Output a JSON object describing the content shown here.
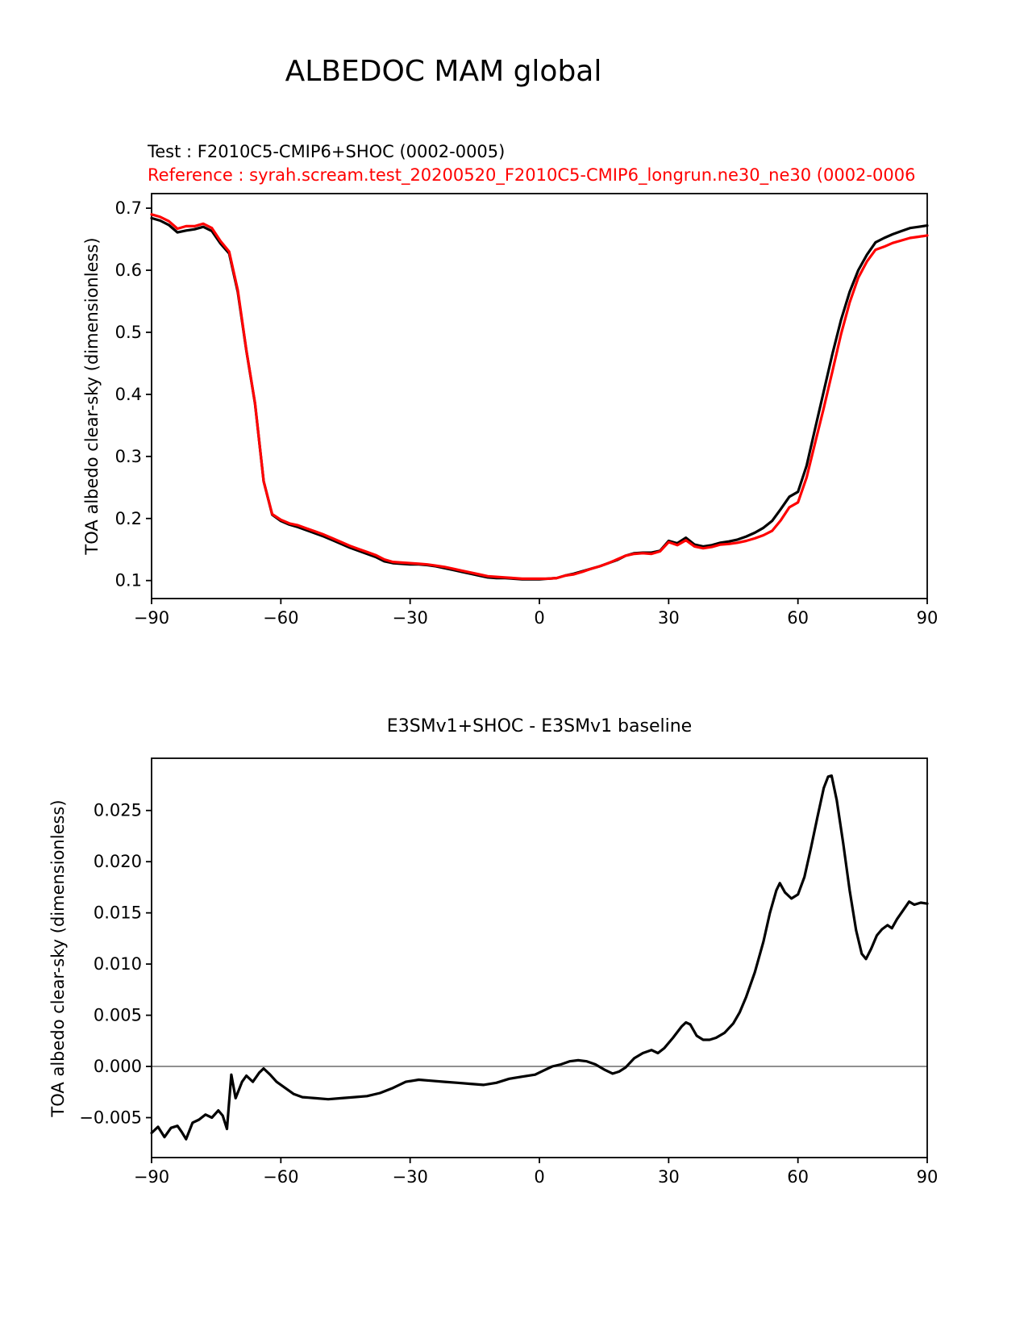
{
  "figure": {
    "title": "ALBEDOC MAM global",
    "legend": {
      "test": "Test : F2010C5-CMIP6+SHOC (0002-0005)",
      "reference": "Reference : syrah.scream.test_20200520_F2010C5-CMIP6_longrun.ne30_ne30 (0002-0006"
    }
  },
  "colors": {
    "test_line": "#000000",
    "reference_line": "#ff0000",
    "zero_line": "#909090",
    "axis": "#000000"
  },
  "chart_data": [
    {
      "type": "line",
      "title": "ALBEDOC MAM global",
      "xlabel": "",
      "ylabel": "TOA albedo clear-sky (dimensionless)",
      "xlim": [
        -90,
        90
      ],
      "ylim": [
        0.071,
        0.7235
      ],
      "grid": false,
      "legend_position": "above-top-left",
      "xticks": [
        -90,
        -60,
        -30,
        0,
        30,
        60,
        90
      ],
      "xtick_labels": [
        "−90",
        "−60",
        "−30",
        "0",
        "30",
        "60",
        "90"
      ],
      "yticks": [
        0.1,
        0.2,
        0.3,
        0.4,
        0.5,
        0.6,
        0.7
      ],
      "ytick_labels": [
        "0.1",
        "0.2",
        "0.3",
        "0.4",
        "0.5",
        "0.6",
        "0.7"
      ],
      "x": [
        -90,
        -88,
        -86,
        -84,
        -82,
        -80,
        -78,
        -76,
        -74,
        -72,
        -70,
        -68,
        -66,
        -64,
        -62,
        -60,
        -58,
        -56,
        -54,
        -52,
        -50,
        -48,
        -46,
        -44,
        -42,
        -40,
        -38,
        -36,
        -34,
        -32,
        -30,
        -28,
        -26,
        -24,
        -22,
        -20,
        -18,
        -16,
        -14,
        -12,
        -10,
        -8,
        -6,
        -4,
        -2,
        0,
        2,
        4,
        6,
        8,
        10,
        12,
        14,
        16,
        18,
        20,
        22,
        24,
        26,
        28,
        30,
        32,
        34,
        36,
        38,
        40,
        42,
        44,
        46,
        48,
        50,
        52,
        54,
        56,
        58,
        60,
        62,
        64,
        66,
        68,
        70,
        72,
        74,
        76,
        78,
        80,
        82,
        84,
        86,
        88,
        90
      ],
      "series": [
        {
          "name": "Test : F2010C5-CMIP6+SHOC (0002-0005)",
          "color": "#000000",
          "values": [
            0.684,
            0.68,
            0.673,
            0.661,
            0.664,
            0.666,
            0.67,
            0.663,
            0.643,
            0.627,
            0.565,
            0.47,
            0.385,
            0.26,
            0.206,
            0.196,
            0.19,
            0.186,
            0.181,
            0.176,
            0.171,
            0.165,
            0.159,
            0.153,
            0.148,
            0.143,
            0.138,
            0.131,
            0.128,
            0.127,
            0.126,
            0.126,
            0.125,
            0.123,
            0.12,
            0.117,
            0.114,
            0.111,
            0.108,
            0.105,
            0.104,
            0.104,
            0.103,
            0.102,
            0.102,
            0.102,
            0.103,
            0.104,
            0.108,
            0.111,
            0.115,
            0.119,
            0.123,
            0.128,
            0.133,
            0.14,
            0.144,
            0.145,
            0.145,
            0.148,
            0.164,
            0.16,
            0.169,
            0.158,
            0.155,
            0.157,
            0.161,
            0.163,
            0.166,
            0.171,
            0.177,
            0.185,
            0.196,
            0.215,
            0.235,
            0.243,
            0.285,
            0.345,
            0.405,
            0.465,
            0.52,
            0.565,
            0.6,
            0.625,
            0.645,
            0.652,
            0.658,
            0.663,
            0.668,
            0.67,
            0.672
          ]
        },
        {
          "name": "Reference : syrah.scream.test_20200520_F2010C5-CMIP6_longrun.ne30_ne30 (0002-0006",
          "color": "#ff0000",
          "values": [
            0.69,
            0.686,
            0.679,
            0.667,
            0.671,
            0.671,
            0.675,
            0.668,
            0.647,
            0.63,
            0.568,
            0.471,
            0.386,
            0.26,
            0.207,
            0.198,
            0.192,
            0.189,
            0.184,
            0.179,
            0.174,
            0.168,
            0.162,
            0.156,
            0.151,
            0.146,
            0.141,
            0.134,
            0.13,
            0.129,
            0.128,
            0.127,
            0.126,
            0.124,
            0.122,
            0.119,
            0.116,
            0.113,
            0.11,
            0.107,
            0.106,
            0.105,
            0.104,
            0.103,
            0.103,
            0.103,
            0.103,
            0.104,
            0.108,
            0.11,
            0.114,
            0.119,
            0.123,
            0.128,
            0.134,
            0.14,
            0.143,
            0.144,
            0.143,
            0.147,
            0.162,
            0.157,
            0.165,
            0.155,
            0.152,
            0.154,
            0.158,
            0.159,
            0.161,
            0.164,
            0.168,
            0.173,
            0.18,
            0.197,
            0.218,
            0.226,
            0.266,
            0.322,
            0.378,
            0.437,
            0.497,
            0.548,
            0.588,
            0.614,
            0.633,
            0.638,
            0.644,
            0.648,
            0.652,
            0.654,
            0.656
          ]
        }
      ]
    },
    {
      "type": "line",
      "title": "E3SMv1+SHOC - E3SMv1 baseline",
      "xlabel": "",
      "ylabel": "TOA albedo clear-sky (dimensionless)",
      "xlim": [
        -90,
        90
      ],
      "ylim": [
        -0.0089,
        0.0301
      ],
      "grid": false,
      "reference_line_y": 0,
      "xticks": [
        -90,
        -60,
        -30,
        0,
        30,
        60,
        90
      ],
      "xtick_labels": [
        "−90",
        "−60",
        "−30",
        "0",
        "30",
        "60",
        "90"
      ],
      "yticks": [
        -0.005,
        0.0,
        0.005,
        0.01,
        0.015,
        0.02,
        0.025
      ],
      "ytick_labels": [
        "−0.005",
        "0.000",
        "0.005",
        "0.010",
        "0.015",
        "0.020",
        "0.025"
      ],
      "x": [
        -90,
        -88.5,
        -87,
        -85.5,
        -84,
        -83,
        -82,
        -80.5,
        -79,
        -77.5,
        -76,
        -74.5,
        -73.5,
        -72.5,
        -71.5,
        -70.5,
        -69,
        -68,
        -66.5,
        -65,
        -64,
        -62.5,
        -61,
        -59,
        -57,
        -55,
        -52,
        -49,
        -46,
        -43,
        -40,
        -37,
        -34,
        -31,
        -28,
        -25,
        -22,
        -19,
        -16,
        -13,
        -10,
        -7,
        -4,
        -1,
        1,
        3,
        5,
        7,
        9,
        11,
        13,
        15,
        17,
        18.5,
        20,
        22,
        24,
        26,
        27.5,
        29,
        31,
        33,
        34,
        35,
        36.5,
        38,
        39.5,
        41,
        43,
        45,
        46.5,
        48,
        50,
        52,
        53.5,
        55,
        55.8,
        57,
        58.5,
        60,
        61.5,
        63,
        64.5,
        66,
        67,
        67.8,
        69,
        70.5,
        72,
        73.5,
        74.8,
        75.8,
        77,
        78.3,
        79.5,
        80.8,
        81.8,
        83,
        84.5,
        85.8,
        87,
        88.5,
        90
      ],
      "series": [
        {
          "name": "E3SMv1+SHOC - E3SMv1 baseline",
          "color": "#000000",
          "values": [
            -0.0065,
            -0.0059,
            -0.0069,
            -0.006,
            -0.0058,
            -0.0064,
            -0.0071,
            -0.0055,
            -0.0052,
            -0.0047,
            -0.005,
            -0.0043,
            -0.0048,
            -0.0061,
            -0.0008,
            -0.0031,
            -0.0015,
            -0.0009,
            -0.0015,
            -0.0006,
            -0.0002,
            -0.0008,
            -0.0015,
            -0.0021,
            -0.0027,
            -0.003,
            -0.0031,
            -0.0032,
            -0.0031,
            -0.003,
            -0.0029,
            -0.0026,
            -0.0021,
            -0.0015,
            -0.0013,
            -0.0014,
            -0.0015,
            -0.0016,
            -0.0017,
            -0.0018,
            -0.0016,
            -0.0012,
            -0.001,
            -0.0008,
            -0.0004,
            0.0,
            0.0002,
            0.0005,
            0.0006,
            0.0005,
            0.0002,
            -0.0003,
            -0.0007,
            -0.0005,
            -0.0001,
            0.0008,
            0.0013,
            0.0016,
            0.0013,
            0.0018,
            0.0028,
            0.0039,
            0.0043,
            0.0041,
            0.003,
            0.0026,
            0.0026,
            0.0028,
            0.0033,
            0.0042,
            0.0053,
            0.0068,
            0.0092,
            0.0122,
            0.015,
            0.0172,
            0.0179,
            0.017,
            0.0164,
            0.0168,
            0.0185,
            0.0213,
            0.0243,
            0.0272,
            0.0283,
            0.0284,
            0.026,
            0.0218,
            0.0172,
            0.0133,
            0.011,
            0.0105,
            0.0115,
            0.0128,
            0.0134,
            0.0138,
            0.0135,
            0.0144,
            0.0153,
            0.0161,
            0.0158,
            0.016,
            0.0159
          ]
        }
      ]
    }
  ]
}
